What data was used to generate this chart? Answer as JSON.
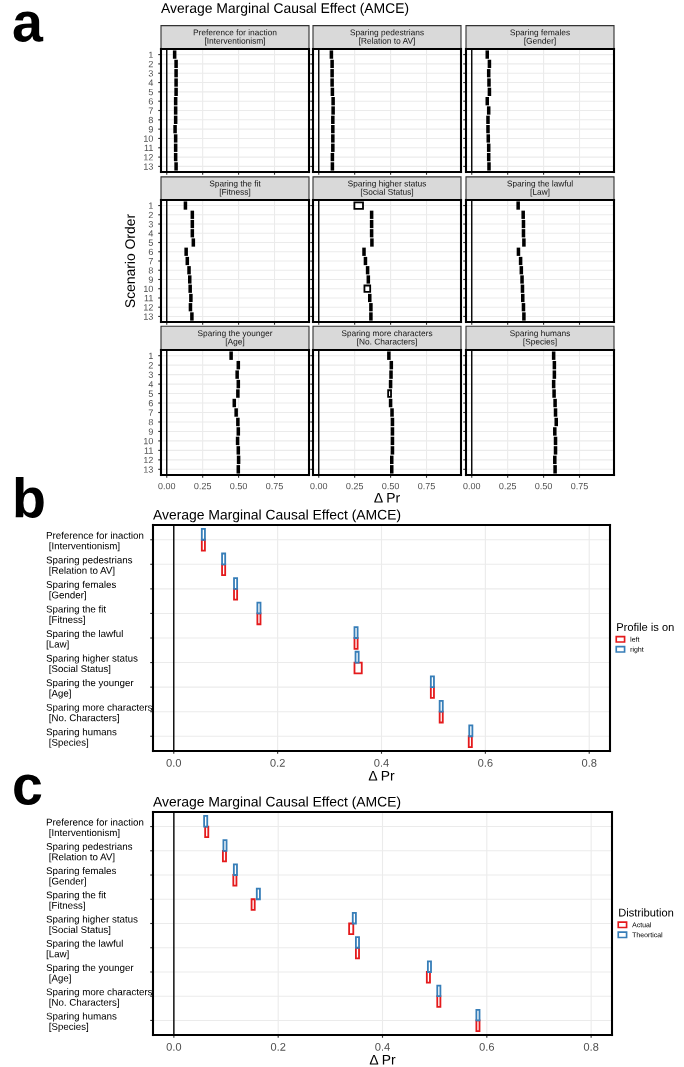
{
  "chart_data": [
    {
      "type": "bar",
      "orientation": "horizontal",
      "title": "Average Marginal Causal Effect (AMCE)",
      "subtitle": "Preference for inaction\n[Interventionism]",
      "annotations": [
        "a"
      ],
      "categories": [
        "1",
        "2",
        "3",
        "4",
        "5",
        "6",
        "7",
        "8",
        "9",
        "10",
        "11",
        "12",
        "13"
      ],
      "base": [
        0.049,
        0.059,
        0.059,
        0.059,
        0.059,
        0.056,
        0.056,
        0.056,
        0.052,
        0.056,
        0.056,
        0.056,
        0.059
      ],
      "values": [
        0.012,
        0.012,
        0.012,
        0.012,
        0.012,
        0.012,
        0.012,
        0.012,
        0.012,
        0.012,
        0.012,
        0.012,
        0.012
      ],
      "color": "#000000",
      "xlim": [
        -0.04,
        0.99
      ],
      "xticks": [
        {
          "value": 0,
          "label": null
        },
        {
          "value": 0.25,
          "label": null
        },
        {
          "value": 0.5,
          "label": null
        },
        {
          "value": 0.75,
          "label": null
        }
      ],
      "ref_lines": [
        {
          "axis": "x",
          "value": 0
        }
      ],
      "grid": true,
      "tick_labels": "y"
    },
    {
      "type": "bar",
      "orientation": "horizontal",
      "subtitle": "Sparing pedestrians\n[Relation to AV]",
      "categories": [
        "1",
        "2",
        "3",
        "4",
        "5",
        "6",
        "7",
        "8",
        "9",
        "10",
        "11",
        "12",
        "13"
      ],
      "base": [
        0.082,
        0.087,
        0.087,
        0.087,
        0.089,
        0.094,
        0.094,
        0.092,
        0.092,
        0.092,
        0.092,
        0.089,
        0.089
      ],
      "values": [
        0.012,
        0.012,
        0.012,
        0.012,
        0.012,
        0.012,
        0.012,
        0.012,
        0.012,
        0.012,
        0.012,
        0.012,
        0.012
      ],
      "color": "#000000",
      "xlim": [
        -0.04,
        0.99
      ],
      "xticks": [
        {
          "value": 0,
          "label": null
        },
        {
          "value": 0.25,
          "label": null
        },
        {
          "value": 0.5,
          "label": null
        },
        {
          "value": 0.75,
          "label": null
        }
      ],
      "ref_lines": [
        {
          "axis": "x",
          "value": 0
        }
      ],
      "grid": true,
      "tick_labels": false
    },
    {
      "type": "bar",
      "orientation": "horizontal",
      "subtitle": "Sparing females\n[Gender]",
      "categories": [
        "1",
        "2",
        "3",
        "4",
        "5",
        "6",
        "7",
        "8",
        "9",
        "10",
        "11",
        "12",
        "13"
      ],
      "base": [
        0.102,
        0.117,
        0.112,
        0.114,
        0.117,
        0.102,
        0.112,
        0.107,
        0.107,
        0.109,
        0.112,
        0.112,
        0.114
      ],
      "values": [
        0.012,
        0.012,
        0.012,
        0.012,
        0.012,
        0.012,
        0.012,
        0.012,
        0.012,
        0.012,
        0.012,
        0.012,
        0.012
      ],
      "color": "#000000",
      "xlim": [
        -0.04,
        0.99
      ],
      "xticks": [
        {
          "value": 0,
          "label": null
        },
        {
          "value": 0.25,
          "label": null
        },
        {
          "value": 0.5,
          "label": null
        },
        {
          "value": 0.75,
          "label": null
        }
      ],
      "ref_lines": [
        {
          "axis": "x",
          "value": 0
        }
      ],
      "grid": true,
      "tick_labels": false
    },
    {
      "type": "bar",
      "orientation": "horizontal",
      "subtitle": "Sparing the fit\n[Fitness]",
      "ylabel": "Scenario Order",
      "categories": [
        "1",
        "2",
        "3",
        "4",
        "5",
        "6",
        "7",
        "8",
        "9",
        "10",
        "11",
        "12",
        "13"
      ],
      "base": [
        0.124,
        0.172,
        0.172,
        0.172,
        0.179,
        0.129,
        0.137,
        0.149,
        0.154,
        0.157,
        0.162,
        0.159,
        0.169
      ],
      "values": [
        0.012,
        0.012,
        0.012,
        0.012,
        0.012,
        0.012,
        0.012,
        0.012,
        0.012,
        0.012,
        0.012,
        0.012,
        0.012
      ],
      "color": "#000000",
      "xlim": [
        -0.04,
        0.99
      ],
      "xticks": [
        {
          "value": 0,
          "label": null
        },
        {
          "value": 0.25,
          "label": null
        },
        {
          "value": 0.5,
          "label": null
        },
        {
          "value": 0.75,
          "label": null
        }
      ],
      "ref_lines": [
        {
          "axis": "x",
          "value": 0
        }
      ],
      "grid": true,
      "tick_labels": "y"
    },
    {
      "type": "bar",
      "orientation": "horizontal",
      "subtitle": "Sparing higher status\n[Social Status]",
      "categories": [
        "1",
        "2",
        "3",
        "4",
        "5",
        "6",
        "7",
        "8",
        "9",
        "10",
        "11",
        "12",
        "13"
      ],
      "base": [
        0.248,
        0.362,
        0.362,
        0.362,
        0.364,
        0.309,
        0.319,
        0.334,
        0.339,
        0.318,
        0.349,
        0.357,
        0.357
      ],
      "values": [
        0.06,
        0.012,
        0.012,
        0.012,
        0.012,
        0.012,
        0.012,
        0.012,
        0.012,
        0.04,
        0.012,
        0.012,
        0.012
      ],
      "color": "#000000",
      "xlim": [
        -0.04,
        0.99
      ],
      "xticks": [
        {
          "value": 0,
          "label": null
        },
        {
          "value": 0.25,
          "label": null
        },
        {
          "value": 0.5,
          "label": null
        },
        {
          "value": 0.75,
          "label": null
        }
      ],
      "ref_lines": [
        {
          "axis": "x",
          "value": 0
        }
      ],
      "grid": true,
      "tick_labels": false
    },
    {
      "type": "bar",
      "orientation": "horizontal",
      "subtitle": "Sparing the lawful\n[Law]",
      "categories": [
        "1",
        "2",
        "3",
        "4",
        "5",
        "6",
        "7",
        "8",
        "9",
        "10",
        "11",
        "12",
        "13"
      ],
      "base": [
        0.317,
        0.352,
        0.354,
        0.354,
        0.357,
        0.319,
        0.334,
        0.339,
        0.344,
        0.347,
        0.349,
        0.354,
        0.357
      ],
      "values": [
        0.012,
        0.012,
        0.012,
        0.012,
        0.012,
        0.012,
        0.012,
        0.012,
        0.012,
        0.012,
        0.012,
        0.012,
        0.012
      ],
      "color": "#000000",
      "xlim": [
        -0.04,
        0.99
      ],
      "xticks": [
        {
          "value": 0,
          "label": null
        },
        {
          "value": 0.25,
          "label": null
        },
        {
          "value": 0.5,
          "label": null
        },
        {
          "value": 0.75,
          "label": null
        }
      ],
      "ref_lines": [
        {
          "axis": "x",
          "value": 0
        }
      ],
      "grid": true,
      "tick_labels": false
    },
    {
      "type": "bar",
      "orientation": "horizontal",
      "subtitle": "Sparing the younger\n[Age]",
      "categories": [
        "1",
        "2",
        "3",
        "4",
        "5",
        "6",
        "7",
        "8",
        "9",
        "10",
        "11",
        "12",
        "13"
      ],
      "base": [
        0.442,
        0.492,
        0.484,
        0.492,
        0.489,
        0.464,
        0.477,
        0.489,
        0.492,
        0.487,
        0.492,
        0.494,
        0.492
      ],
      "values": [
        0.012,
        0.012,
        0.012,
        0.012,
        0.012,
        0.012,
        0.012,
        0.012,
        0.012,
        0.012,
        0.012,
        0.012,
        0.012
      ],
      "color": "#000000",
      "xlim": [
        -0.04,
        0.99
      ],
      "xticks": [
        {
          "value": 0,
          "label": "0.00"
        },
        {
          "value": 0.25,
          "label": "0.25"
        },
        {
          "value": 0.5,
          "label": "0.50"
        },
        {
          "value": 0.75,
          "label": "0.75"
        }
      ],
      "ref_lines": [
        {
          "axis": "x",
          "value": 0
        }
      ],
      "grid": true
    },
    {
      "type": "bar",
      "orientation": "horizontal",
      "subtitle": "Sparing more characters\n[No. Characters]",
      "xlabel": "Δ Pr",
      "categories": [
        "1",
        "2",
        "3",
        "4",
        "5",
        "6",
        "7",
        "8",
        "9",
        "10",
        "11",
        "12",
        "13"
      ],
      "base": [
        0.482,
        0.499,
        0.497,
        0.494,
        0.483,
        0.494,
        0.504,
        0.507,
        0.507,
        0.507,
        0.507,
        0.502,
        0.502
      ],
      "values": [
        0.012,
        0.012,
        0.012,
        0.012,
        0.02,
        0.012,
        0.012,
        0.012,
        0.012,
        0.012,
        0.012,
        0.012,
        0.012
      ],
      "color": "#000000",
      "xlim": [
        -0.04,
        0.99
      ],
      "xticks": [
        {
          "value": 0,
          "label": "0.00"
        },
        {
          "value": 0.25,
          "label": "0.25"
        },
        {
          "value": 0.5,
          "label": "0.50"
        },
        {
          "value": 0.75,
          "label": "0.75"
        }
      ],
      "ref_lines": [
        {
          "axis": "x",
          "value": 0
        }
      ],
      "grid": true,
      "tick_labels": "x"
    },
    {
      "type": "bar",
      "orientation": "horizontal",
      "subtitle": "Sparing humans\n[Species]",
      "categories": [
        "1",
        "2",
        "3",
        "4",
        "5",
        "6",
        "7",
        "8",
        "9",
        "10",
        "11",
        "12",
        "13"
      ],
      "base": [
        0.564,
        0.569,
        0.569,
        0.564,
        0.567,
        0.574,
        0.577,
        0.582,
        0.572,
        0.577,
        0.577,
        0.572,
        0.574
      ],
      "values": [
        0.012,
        0.012,
        0.012,
        0.012,
        0.012,
        0.012,
        0.012,
        0.012,
        0.012,
        0.012,
        0.012,
        0.012,
        0.012
      ],
      "color": "#000000",
      "xlim": [
        -0.04,
        0.99
      ],
      "xticks": [
        {
          "value": 0,
          "label": "0.00"
        },
        {
          "value": 0.25,
          "label": "0.25"
        },
        {
          "value": 0.5,
          "label": "0.50"
        },
        {
          "value": 0.75,
          "label": "0.75"
        }
      ],
      "ref_lines": [
        {
          "axis": "x",
          "value": 0
        }
      ],
      "grid": true,
      "tick_labels": "x"
    },
    {
      "type": "bar",
      "orientation": "horizontal",
      "title": "Average Marginal Causal Effect (AMCE)",
      "annotations": [
        "b"
      ],
      "xlabel": "Δ Pr",
      "legend_title": "Profile is on",
      "legend": "right",
      "categories": [
        "Preference for inaction\n [Interventionism]",
        "Sparing pedestrians\n [Relation to AV]",
        "Sparing females\n [Gender]",
        "Sparing the fit\n [Fitness]",
        "Sparing the lawful\n[Law]",
        "Sparing higher status\n [Social Status]",
        "Sparing the younger\n [Age]",
        "Sparing more characters\n [No. Characters]",
        "Sparing humans\n [Species]"
      ],
      "series": [
        {
          "name": "left",
          "color": "#e41a1c",
          "base": [
            0.054,
            0.093,
            0.116,
            0.161,
            0.348,
            0.348,
            0.495,
            0.512,
            0.568
          ],
          "values": [
            0.006,
            0.006,
            0.006,
            0.006,
            0.006,
            0.014,
            0.006,
            0.006,
            0.006
          ]
        },
        {
          "name": "right",
          "color": "#377eb8",
          "base": [
            0.054,
            0.093,
            0.116,
            0.161,
            0.348,
            0.35,
            0.495,
            0.512,
            0.569
          ],
          "values": [
            0.006,
            0.006,
            0.006,
            0.006,
            0.006,
            0.006,
            0.006,
            0.006,
            0.006
          ]
        }
      ],
      "xlim": [
        -0.04,
        0.84
      ],
      "xticks": [
        {
          "value": 0,
          "label": "0.0"
        },
        {
          "value": 0.2,
          "label": "0.2"
        },
        {
          "value": 0.4,
          "label": "0.4"
        },
        {
          "value": 0.6,
          "label": "0.6"
        },
        {
          "value": 0.8,
          "label": "0.8"
        }
      ],
      "ref_lines": [
        {
          "axis": "x",
          "value": 0
        }
      ],
      "grid": true
    },
    {
      "type": "bar",
      "orientation": "horizontal",
      "title": "Average Marginal Causal Effect (AMCE)",
      "annotations": [
        "c"
      ],
      "xlabel": "Δ Pr",
      "legend_title": "Distribution",
      "legend": "right",
      "categories": [
        "Preference for inaction\n [Interventionism]",
        "Sparing pedestrians\n [Relation to AV]",
        "Sparing females\n [Gender]",
        "Sparing the fit\n [Fitness]",
        "Sparing higher status\n [Social Status]",
        "Sparing the lawful\n[Law]",
        "Sparing the younger\n [Age]",
        "Sparing more characters\n [No. Characters]",
        "Sparing humans\n [Species]"
      ],
      "series": [
        {
          "name": "Actual",
          "color": "#e41a1c",
          "base": [
            0.06,
            0.094,
            0.114,
            0.149,
            0.336,
            0.349,
            0.485,
            0.505,
            0.58
          ],
          "values": [
            0.006,
            0.006,
            0.006,
            0.006,
            0.008,
            0.006,
            0.006,
            0.006,
            0.006
          ]
        },
        {
          "name": "Theortical",
          "color": "#377eb8",
          "base": [
            0.058,
            0.095,
            0.115,
            0.159,
            0.343,
            0.349,
            0.487,
            0.505,
            0.58
          ],
          "values": [
            0.006,
            0.006,
            0.006,
            0.006,
            0.006,
            0.006,
            0.006,
            0.006,
            0.006
          ]
        }
      ],
      "xlim": [
        -0.04,
        0.84
      ],
      "xticks": [
        {
          "value": 0,
          "label": "0.0"
        },
        {
          "value": 0.2,
          "label": "0.2"
        },
        {
          "value": 0.4,
          "label": "0.4"
        },
        {
          "value": 0.6,
          "label": "0.6"
        },
        {
          "value": 0.8,
          "label": "0.8"
        }
      ],
      "ref_lines": [
        {
          "axis": "x",
          "value": 0
        }
      ],
      "grid": true
    }
  ]
}
